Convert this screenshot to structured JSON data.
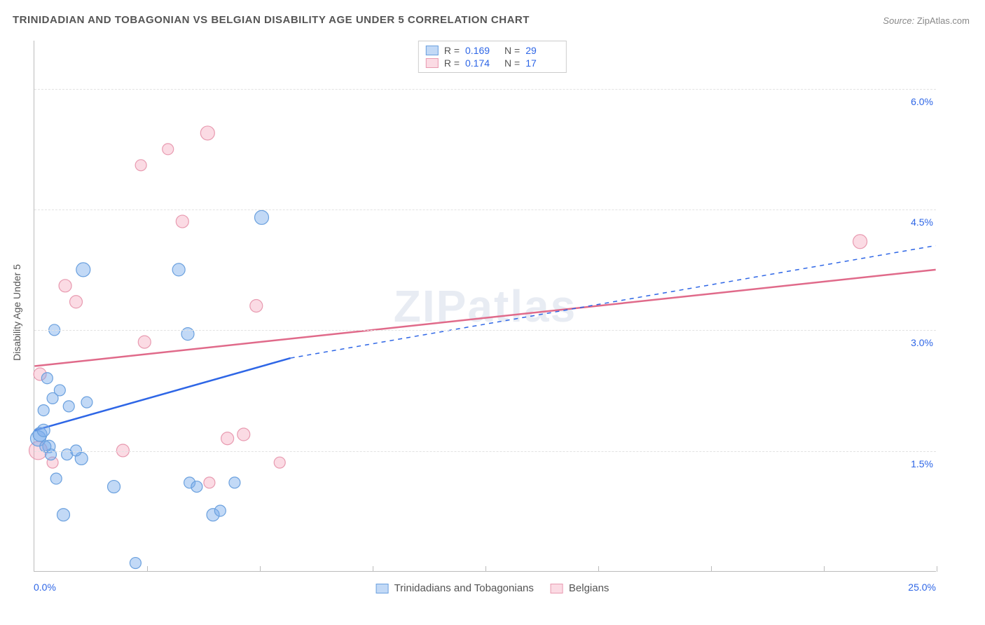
{
  "title": "TRINIDADIAN AND TOBAGONIAN VS BELGIAN DISABILITY AGE UNDER 5 CORRELATION CHART",
  "source_label": "Source:",
  "source_value": "ZipAtlas.com",
  "ylabel": "Disability Age Under 5",
  "watermark": "ZIPatlas",
  "x_axis": {
    "min_label": "0.0%",
    "max_label": "25.0%",
    "min": 0,
    "max": 25,
    "tick_positions": [
      3.125,
      6.25,
      9.375,
      12.5,
      15.625,
      18.75,
      21.875,
      25
    ]
  },
  "y_axis": {
    "min": 0,
    "max": 6.6,
    "gridlines": [
      1.5,
      3.0,
      4.5,
      6.0
    ],
    "labels": [
      "1.5%",
      "3.0%",
      "4.5%",
      "6.0%"
    ]
  },
  "colors": {
    "series1_fill": "rgba(120,170,235,0.45)",
    "series1_stroke": "#6aa0de",
    "series1_line": "#2e66e6",
    "series2_fill": "rgba(245,160,185,0.38)",
    "series2_stroke": "#e89ab0",
    "series2_line": "#e06a8a",
    "axis_text": "#2e66e6",
    "grid": "#e2e2e2",
    "title": "#555555"
  },
  "legend_top": [
    {
      "swatch": "series1",
      "r_label": "R =",
      "r": "0.169",
      "n_label": "N =",
      "n": "29"
    },
    {
      "swatch": "series2",
      "r_label": "R =",
      "r": "0.174",
      "n_label": "N =",
      "n": "17"
    }
  ],
  "legend_bottom": [
    {
      "swatch": "series1",
      "label": "Trinidadians and Tobagonians"
    },
    {
      "swatch": "series2",
      "label": "Belgians"
    }
  ],
  "trend_lines": {
    "series1": {
      "solid_from": [
        0,
        1.75
      ],
      "solid_to": [
        7.1,
        2.65
      ],
      "dash_to": [
        25,
        4.05
      ]
    },
    "series2": {
      "solid_from": [
        0,
        2.55
      ],
      "solid_to": [
        25,
        3.75
      ]
    }
  },
  "points_series1": [
    {
      "x": 0.1,
      "y": 1.65,
      "r": 11
    },
    {
      "x": 0.15,
      "y": 1.7,
      "r": 10
    },
    {
      "x": 0.25,
      "y": 1.75,
      "r": 9
    },
    {
      "x": 0.4,
      "y": 1.55,
      "r": 9
    },
    {
      "x": 0.45,
      "y": 1.45,
      "r": 8
    },
    {
      "x": 0.25,
      "y": 2.0,
      "r": 8
    },
    {
      "x": 0.5,
      "y": 2.15,
      "r": 8
    },
    {
      "x": 0.35,
      "y": 2.4,
      "r": 8
    },
    {
      "x": 0.7,
      "y": 2.25,
      "r": 8
    },
    {
      "x": 0.95,
      "y": 2.05,
      "r": 8
    },
    {
      "x": 1.45,
      "y": 2.1,
      "r": 8
    },
    {
      "x": 0.55,
      "y": 3.0,
      "r": 8
    },
    {
      "x": 1.35,
      "y": 3.75,
      "r": 10
    },
    {
      "x": 4.0,
      "y": 3.75,
      "r": 9
    },
    {
      "x": 4.25,
      "y": 2.95,
      "r": 9
    },
    {
      "x": 6.3,
      "y": 4.4,
      "r": 10
    },
    {
      "x": 0.8,
      "y": 0.7,
      "r": 9
    },
    {
      "x": 1.3,
      "y": 1.4,
      "r": 9
    },
    {
      "x": 2.2,
      "y": 1.05,
      "r": 9
    },
    {
      "x": 2.8,
      "y": 0.1,
      "r": 8
    },
    {
      "x": 4.3,
      "y": 1.1,
      "r": 8
    },
    {
      "x": 4.5,
      "y": 1.05,
      "r": 8
    },
    {
      "x": 4.95,
      "y": 0.7,
      "r": 9
    },
    {
      "x": 5.15,
      "y": 0.75,
      "r": 8
    },
    {
      "x": 5.55,
      "y": 1.1,
      "r": 8
    },
    {
      "x": 0.9,
      "y": 1.45,
      "r": 8
    },
    {
      "x": 1.15,
      "y": 1.5,
      "r": 8
    },
    {
      "x": 0.6,
      "y": 1.15,
      "r": 8
    },
    {
      "x": 0.3,
      "y": 1.55,
      "r": 8
    }
  ],
  "points_series2": [
    {
      "x": 0.1,
      "y": 1.5,
      "r": 13
    },
    {
      "x": 0.15,
      "y": 2.45,
      "r": 9
    },
    {
      "x": 0.85,
      "y": 3.55,
      "r": 9
    },
    {
      "x": 1.15,
      "y": 3.35,
      "r": 9
    },
    {
      "x": 2.45,
      "y": 1.5,
      "r": 9
    },
    {
      "x": 3.05,
      "y": 2.85,
      "r": 9
    },
    {
      "x": 3.7,
      "y": 5.25,
      "r": 8
    },
    {
      "x": 4.1,
      "y": 4.35,
      "r": 9
    },
    {
      "x": 4.8,
      "y": 5.45,
      "r": 10
    },
    {
      "x": 5.35,
      "y": 1.65,
      "r": 9
    },
    {
      "x": 5.8,
      "y": 1.7,
      "r": 9
    },
    {
      "x": 6.15,
      "y": 3.3,
      "r": 9
    },
    {
      "x": 6.8,
      "y": 1.35,
      "r": 8
    },
    {
      "x": 4.85,
      "y": 1.1,
      "r": 8
    },
    {
      "x": 2.95,
      "y": 5.05,
      "r": 8
    },
    {
      "x": 22.9,
      "y": 4.1,
      "r": 10
    },
    {
      "x": 0.5,
      "y": 1.35,
      "r": 8
    }
  ]
}
